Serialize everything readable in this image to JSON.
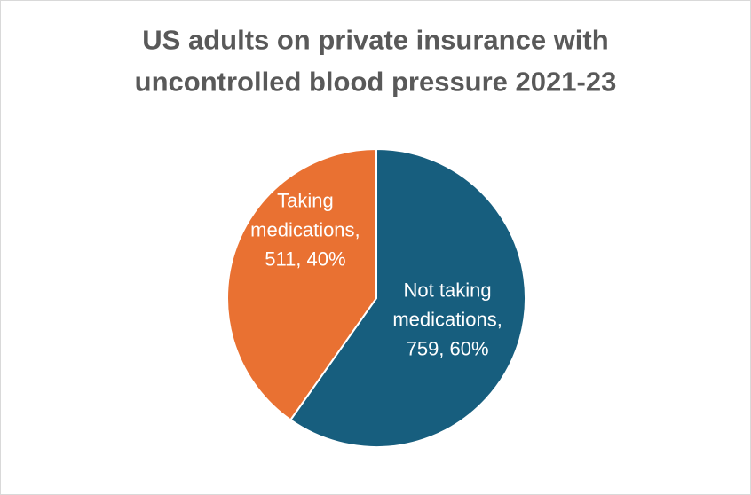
{
  "chart_data": {
    "type": "pie",
    "title": "US adults on private insurance with uncontrolled blood pressure 2021-23",
    "categories": [
      "Not taking medications",
      "Taking medications"
    ],
    "values": [
      759,
      511
    ],
    "value_labels": [
      "Not taking medications, 759, 60%",
      "Taking medications, 511, 40%"
    ],
    "colors": [
      "#175e7e",
      "#e97132"
    ]
  }
}
